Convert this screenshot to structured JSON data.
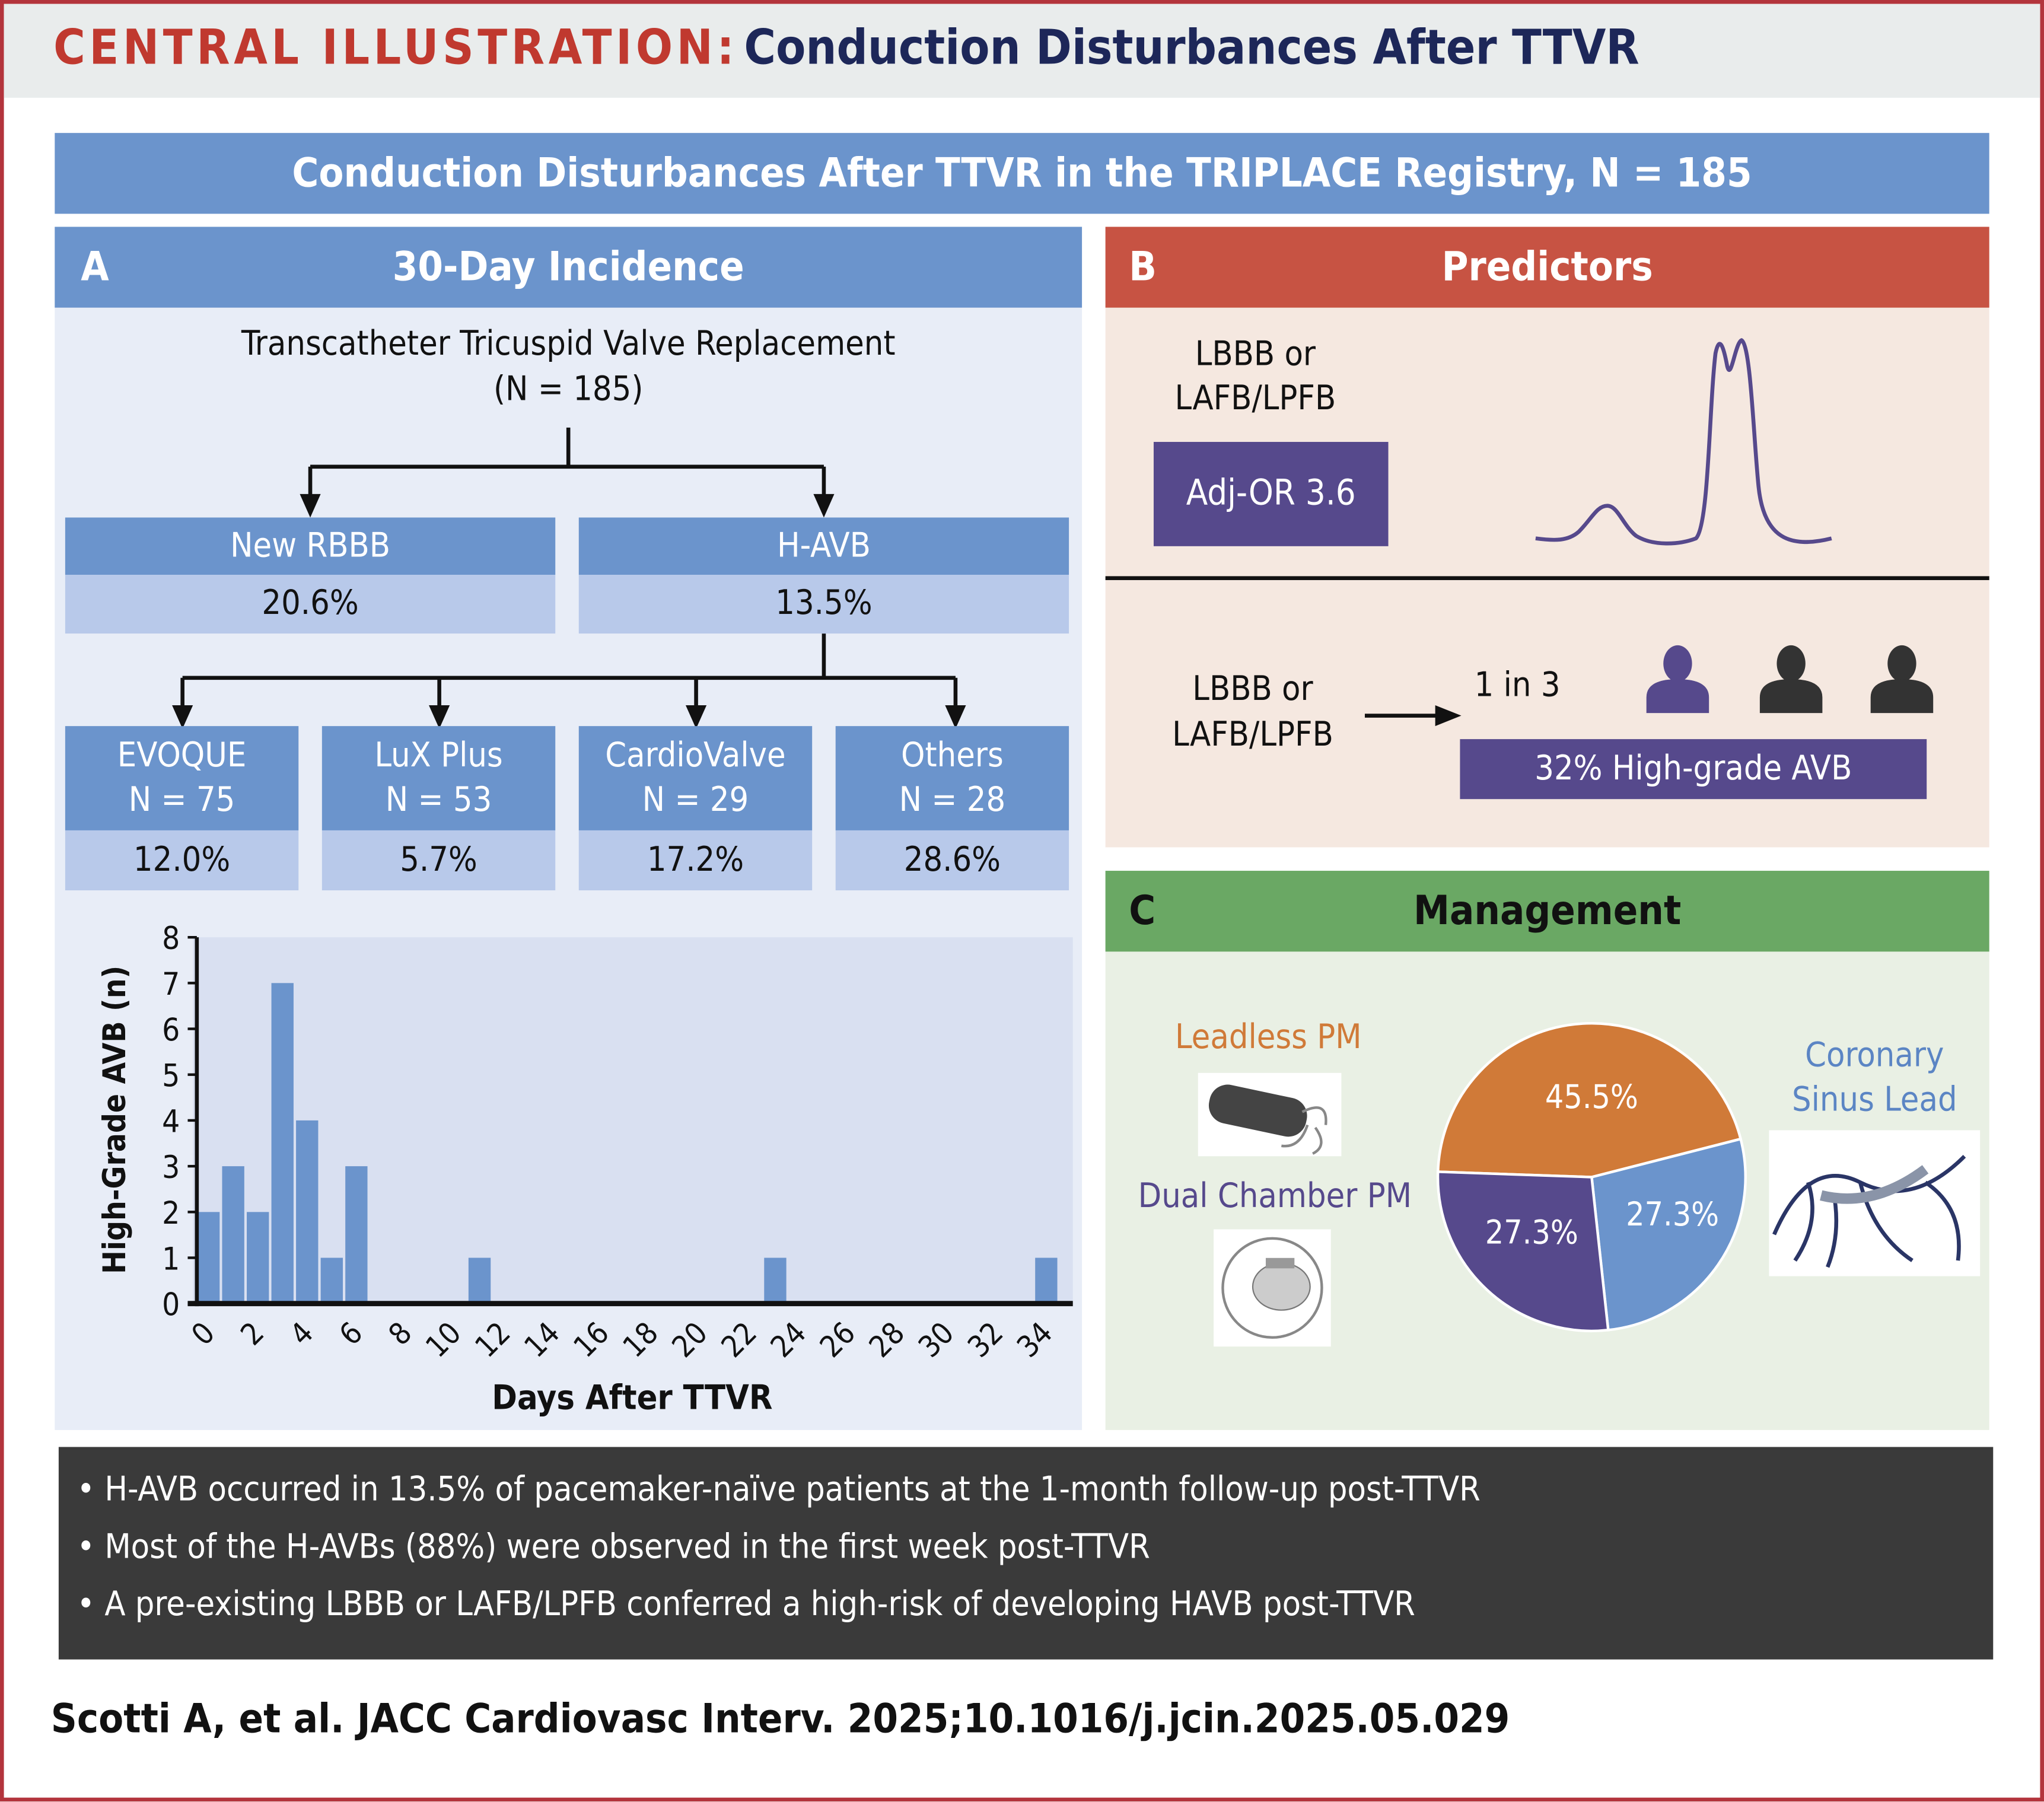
{
  "header": {
    "label": "CENTRAL ILLUSTRATION:",
    "title": "Conduction Disturbances After TTVR"
  },
  "banner": "Conduction Disturbances After TTVR in the TRIPLACE Registry, N = 185",
  "panel_a": {
    "letter": "A",
    "title": "30-Day Incidence",
    "root": {
      "line1": "Transcatheter Tricuspid Valve Replacement",
      "line2": "(N = 185)"
    },
    "level1": [
      {
        "label": "New RBBB",
        "value": "20.6%"
      },
      {
        "label": "H-AVB",
        "value": "13.5%"
      }
    ],
    "level2": [
      {
        "label": "EVOQUE",
        "n": "N = 75",
        "value": "12.0%"
      },
      {
        "label": "LuX Plus",
        "n": "N = 53",
        "value": "5.7%"
      },
      {
        "label": "CardioValve",
        "n": "N = 29",
        "value": "17.2%"
      },
      {
        "label": "Others",
        "n": "N = 28",
        "value": "28.6%"
      }
    ]
  },
  "chart_data": {
    "type": "bar",
    "xlabel": "Days After TTVR",
    "ylabel": "High-Grade AVB (n)",
    "x": [
      0,
      1,
      2,
      3,
      4,
      5,
      6,
      11,
      23,
      34
    ],
    "values": [
      2,
      3,
      2,
      7,
      4,
      1,
      3,
      1,
      1,
      1
    ],
    "xticks": [
      "0",
      "2",
      "4",
      "6",
      "8",
      "10",
      "12",
      "14",
      "16",
      "18",
      "20",
      "22",
      "24",
      "26",
      "28",
      "30",
      "32",
      "34"
    ],
    "yticks": [
      "0",
      "1",
      "2",
      "3",
      "4",
      "5",
      "6",
      "7",
      "8"
    ],
    "xlim": [
      0,
      34
    ],
    "ylim": [
      0,
      8
    ],
    "grid": false,
    "bar_color": "#6b94cc"
  },
  "panel_b": {
    "letter": "B",
    "title": "Predictors",
    "top": {
      "line1": "LBBB or",
      "line2": "LAFB/LPFB",
      "badge": "Adj-OR 3.6"
    },
    "bottom": {
      "line1": "LBBB or",
      "line2": "LAFB/LPFB",
      "ratio": "1 in 3",
      "badge": "32% High-grade AVB"
    },
    "icons": [
      "ecg-waveform-icon",
      "person-icon",
      "person-icon",
      "person-icon"
    ]
  },
  "panel_c": {
    "letter": "C",
    "title": "Management",
    "labels": {
      "leadless": "Leadless PM",
      "dual": "Dual Chamber PM",
      "cs1": "Coronary",
      "cs2": "Sinus Lead"
    },
    "pie": [
      {
        "name": "Leadless PM",
        "value": 45.5,
        "label": "45.5%",
        "color": "#d07a38"
      },
      {
        "name": "Coronary Sinus Lead",
        "value": 27.3,
        "label": "27.3%",
        "color": "#6b94cc"
      },
      {
        "name": "Dual Chamber PM",
        "value": 27.3,
        "label": "27.3%",
        "color": "#56498c"
      }
    ]
  },
  "bullets": [
    "• H-AVB occurred in 13.5% of pacemaker-naïve patients at the 1-month follow-up post-TTVR",
    "• Most of the H-AVBs (88%) were observed in the first week post-TTVR",
    "• A pre-existing LBBB or LAFB/LPFB conferred a high-risk of developing HAVB post-TTVR"
  ],
  "citation": "Scotti A, et al. JACC Cardiovasc Interv. 2025;10.1016/j.jcin.2025.05.029",
  "colors": {
    "panel_a": "#6b94cc",
    "panel_b": "#c75343",
    "panel_c": "#6aa864",
    "accent_purple": "#56498c",
    "frame": "#b3343c"
  }
}
